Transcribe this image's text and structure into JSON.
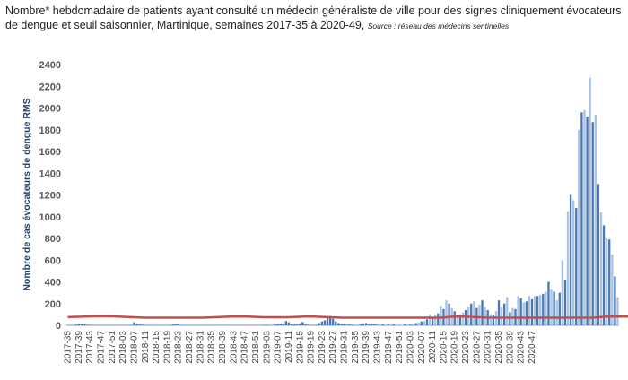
{
  "chart_data": {
    "type": "bar",
    "title": "Nombre* hebdomadaire de patients ayant consulté un médecin généraliste de ville pour des signes cliniquement évocateurs de dengue et seuil saisonnier, Martinique, semaines 2017-35 à 2020-49,",
    "source": "Source : réseau des médecins sentinelles",
    "ylabel": "Nombre de cas évocateurs de dengue RMS",
    "ylim": [
      0,
      2400
    ],
    "yticks": [
      0,
      200,
      400,
      600,
      800,
      1000,
      1200,
      1400,
      1600,
      1800,
      2000,
      2200,
      2400
    ],
    "start_week": "2017-35",
    "x_tick_labels": [
      "2017-35",
      "2017-39",
      "2017-43",
      "2017-47",
      "2017-51",
      "2018-03",
      "2018-07",
      "2018-11",
      "2018-15",
      "2018-19",
      "2018-23",
      "2018-27",
      "2018-31",
      "2018-35",
      "2018-39",
      "2018-43",
      "2018-47",
      "2018-51",
      "2019-03",
      "2019-07",
      "2019-11",
      "2019-15",
      "2019-19",
      "2019-23",
      "2019-27",
      "2019-31",
      "2019-35",
      "2019-39",
      "2019-43",
      "2019-47",
      "2019-51",
      "2020-03",
      "2020-07",
      "2020-11",
      "2020-15",
      "2020-19",
      "2020-23",
      "2020-27",
      "2020-31",
      "2020-35",
      "2020-39",
      "2020-43",
      "2020-47"
    ],
    "series": [
      {
        "kind": "bar",
        "color": "#4a78b5",
        "light_color": "#a9c2e4",
        "values": [
          3,
          2,
          3,
          10,
          15,
          12,
          8,
          6,
          5,
          4,
          4,
          3,
          3,
          3,
          3,
          3,
          3,
          3,
          4,
          3,
          3,
          3,
          3,
          5,
          28,
          12,
          8,
          6,
          5,
          4,
          4,
          3,
          3,
          3,
          3,
          4,
          3,
          3,
          8,
          10,
          12,
          5,
          4,
          3,
          3,
          3,
          3,
          3,
          3,
          3,
          3,
          4,
          3,
          3,
          3,
          3,
          3,
          3,
          3,
          3,
          3,
          3,
          4,
          3,
          3,
          3,
          3,
          3,
          3,
          3,
          3,
          5,
          6,
          4,
          3,
          8,
          10,
          12,
          8,
          40,
          28,
          15,
          10,
          8,
          12,
          30,
          10,
          6,
          4,
          3,
          5,
          20,
          35,
          45,
          70,
          85,
          60,
          35,
          20,
          10,
          8,
          6,
          8,
          6,
          4,
          3,
          10,
          15,
          20,
          8,
          10,
          8,
          6,
          10,
          12,
          8,
          15,
          10,
          8,
          5,
          4,
          3,
          12,
          10,
          8,
          15,
          20,
          25,
          35,
          40,
          55,
          100,
          65,
          90,
          110,
          180,
          150,
          230,
          200,
          160,
          130,
          90,
          100,
          120,
          140,
          170,
          200,
          220,
          160,
          190,
          230,
          170,
          140,
          100,
          90,
          130,
          230,
          170,
          200,
          260,
          120,
          160,
          150,
          270,
          250,
          210,
          220,
          270,
          240,
          270,
          270,
          280,
          290,
          310,
          400,
          330,
          310,
          230,
          300,
          600,
          420,
          1050,
          1200,
          1150,
          1080,
          1800,
          1960,
          1980,
          1920,
          2280,
          1870,
          1940,
          1300,
          1040,
          920,
          800,
          790,
          650,
          450,
          260
        ],
        "light_from_week": "2019-43"
      },
      {
        "kind": "line",
        "color": "#c0504d",
        "label": "seuil saisonnier",
        "values": [
          75,
          76,
          77,
          78,
          78,
          79,
          80,
          80,
          81,
          81,
          82,
          82,
          82,
          82,
          82,
          82,
          82,
          81,
          80,
          79,
          78,
          77,
          76,
          75,
          74,
          73,
          72,
          71,
          70,
          70,
          70,
          70,
          70,
          70,
          70,
          70,
          70,
          70,
          70,
          70,
          70,
          70,
          70,
          70,
          70,
          70,
          70,
          70,
          70,
          70,
          71,
          72,
          73,
          74,
          75,
          76,
          77,
          78,
          79,
          80,
          80,
          80,
          80,
          80,
          80,
          80,
          79,
          78,
          77,
          76,
          75,
          74,
          74,
          74,
          74,
          74,
          74,
          74,
          74,
          74,
          74,
          75,
          76,
          77,
          78,
          79,
          80,
          80,
          80,
          80,
          79,
          78,
          77,
          76,
          75,
          74,
          73,
          72,
          71,
          70,
          70,
          70,
          70,
          70,
          70,
          70,
          70,
          70,
          70,
          70,
          70,
          70,
          70,
          70,
          70,
          70,
          70,
          70,
          70,
          70,
          70,
          70,
          70,
          70,
          70,
          70,
          70,
          70,
          70,
          70,
          70,
          70,
          70,
          70,
          70,
          70,
          72,
          74,
          76,
          78,
          80,
          80,
          80,
          80,
          79,
          78,
          77,
          76,
          75,
          74,
          73,
          72,
          71,
          70,
          70,
          70,
          70,
          70,
          70,
          70,
          70,
          70,
          70,
          70,
          70,
          70,
          70,
          70,
          70,
          70,
          70,
          70,
          70,
          70,
          70,
          70,
          70,
          70,
          70,
          70,
          70,
          70,
          70,
          70,
          70,
          70,
          70,
          70,
          70,
          70,
          70,
          72,
          74,
          76,
          78,
          80,
          80,
          80,
          80,
          80,
          80,
          80,
          80,
          80
        ]
      }
    ]
  }
}
